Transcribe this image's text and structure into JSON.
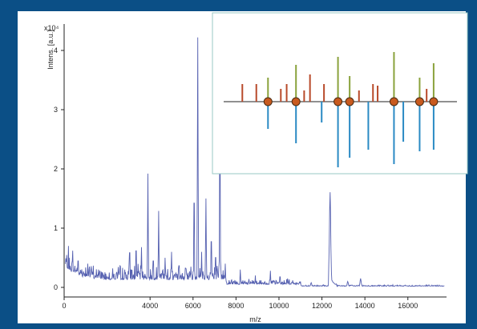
{
  "chart_data": [
    {
      "type": "line",
      "title": "",
      "xlabel": "m/z",
      "ylabel": "Intens. [a.u.]",
      "y_multiplier": "x10⁴",
      "xlim": [
        0,
        17800
      ],
      "ylim": [
        -0.1,
        4.45
      ],
      "x_ticks": [
        0,
        4000,
        6000,
        8000,
        10000,
        12000,
        14000,
        16000
      ],
      "x_tick_labels": [
        "0",
        "4000",
        "6000",
        "8000",
        "10000",
        "12000",
        "14000",
        "16000"
      ],
      "y_ticks": [
        0,
        1,
        2,
        3,
        4
      ],
      "y_tick_labels": [
        "0",
        "1",
        "2",
        "3",
        "4"
      ],
      "line_color": "#5560b0",
      "peaks": [
        {
          "x": 200,
          "y": 0.7
        },
        {
          "x": 400,
          "y": 0.62
        },
        {
          "x": 650,
          "y": 0.55
        },
        {
          "x": 1100,
          "y": 0.4
        },
        {
          "x": 1600,
          "y": 0.3
        },
        {
          "x": 2100,
          "y": 0.25
        },
        {
          "x": 3050,
          "y": 0.72
        },
        {
          "x": 3350,
          "y": 0.76
        },
        {
          "x": 3600,
          "y": 0.68
        },
        {
          "x": 3900,
          "y": 1.92
        },
        {
          "x": 4150,
          "y": 0.55
        },
        {
          "x": 4400,
          "y": 1.29
        },
        {
          "x": 4700,
          "y": 0.5
        },
        {
          "x": 5000,
          "y": 0.6
        },
        {
          "x": 5350,
          "y": 0.45
        },
        {
          "x": 5650,
          "y": 0.4
        },
        {
          "x": 5900,
          "y": 0.35
        },
        {
          "x": 6050,
          "y": 1.75
        },
        {
          "x": 6220,
          "y": 4.22
        },
        {
          "x": 6400,
          "y": 0.6
        },
        {
          "x": 6600,
          "y": 1.5
        },
        {
          "x": 6850,
          "y": 0.95
        },
        {
          "x": 7050,
          "y": 0.62
        },
        {
          "x": 7250,
          "y": 2.88
        },
        {
          "x": 7500,
          "y": 0.4
        },
        {
          "x": 8200,
          "y": 0.3
        },
        {
          "x": 8900,
          "y": 0.2
        },
        {
          "x": 9600,
          "y": 0.28
        },
        {
          "x": 10050,
          "y": 0.22
        },
        {
          "x": 10400,
          "y": 0.15
        },
        {
          "x": 11000,
          "y": 0.1
        },
        {
          "x": 11500,
          "y": 0.08
        },
        {
          "x": 12380,
          "y": 1.45
        },
        {
          "x": 13200,
          "y": 0.1
        },
        {
          "x": 13800,
          "y": 0.15
        },
        {
          "x": 16400,
          "y": 0.02
        }
      ]
    },
    {
      "type": "mirror_stick",
      "title": "",
      "series": [
        {
          "values": [
            {
              "x": 0.08,
              "h": 0.55
            },
            {
              "x": 0.14,
              "h": 0.55
            },
            {
              "x": 0.19,
              "h": 0.75
            },
            {
              "x": 0.245,
              "h": 0.4
            },
            {
              "x": 0.27,
              "h": 0.55
            },
            {
              "x": 0.31,
              "h": 1.15
            },
            {
              "x": 0.345,
              "h": 0.35
            },
            {
              "x": 0.37,
              "h": 0.85
            },
            {
              "x": 0.43,
              "h": 0.55
            },
            {
              "x": 0.49,
              "h": 1.4
            },
            {
              "x": 0.54,
              "h": 0.8
            },
            {
              "x": 0.58,
              "h": 0.35
            },
            {
              "x": 0.64,
              "h": 0.55
            },
            {
              "x": 0.66,
              "h": 0.5
            },
            {
              "x": 0.73,
              "h": 1.55
            },
            {
              "x": 0.84,
              "h": 0.75
            },
            {
              "x": 0.87,
              "h": 0.4
            },
            {
              "x": 0.9,
              "h": 1.2
            }
          ]
        },
        {
          "values": [
            {
              "x": 0.19,
              "h": 0.85
            },
            {
              "x": 0.31,
              "h": 1.3
            },
            {
              "x": 0.42,
              "h": 0.65
            },
            {
              "x": 0.49,
              "h": 2.05
            },
            {
              "x": 0.54,
              "h": 1.75
            },
            {
              "x": 0.62,
              "h": 1.5
            },
            {
              "x": 0.73,
              "h": 1.95
            },
            {
              "x": 0.77,
              "h": 1.25
            },
            {
              "x": 0.84,
              "h": 1.55
            },
            {
              "x": 0.9,
              "h": 1.5
            }
          ]
        }
      ],
      "matches": [
        0.19,
        0.31,
        0.49,
        0.54,
        0.73,
        0.84,
        0.9
      ],
      "colors": {
        "top_short": "#b84a2a",
        "top_tall": "#8aa23c",
        "bottom": "#2a8ac4",
        "marker_fill": "#c85a1f",
        "marker_stroke": "#4a2a10",
        "axis": "#222222",
        "border": "#9ac8c4"
      }
    }
  ]
}
